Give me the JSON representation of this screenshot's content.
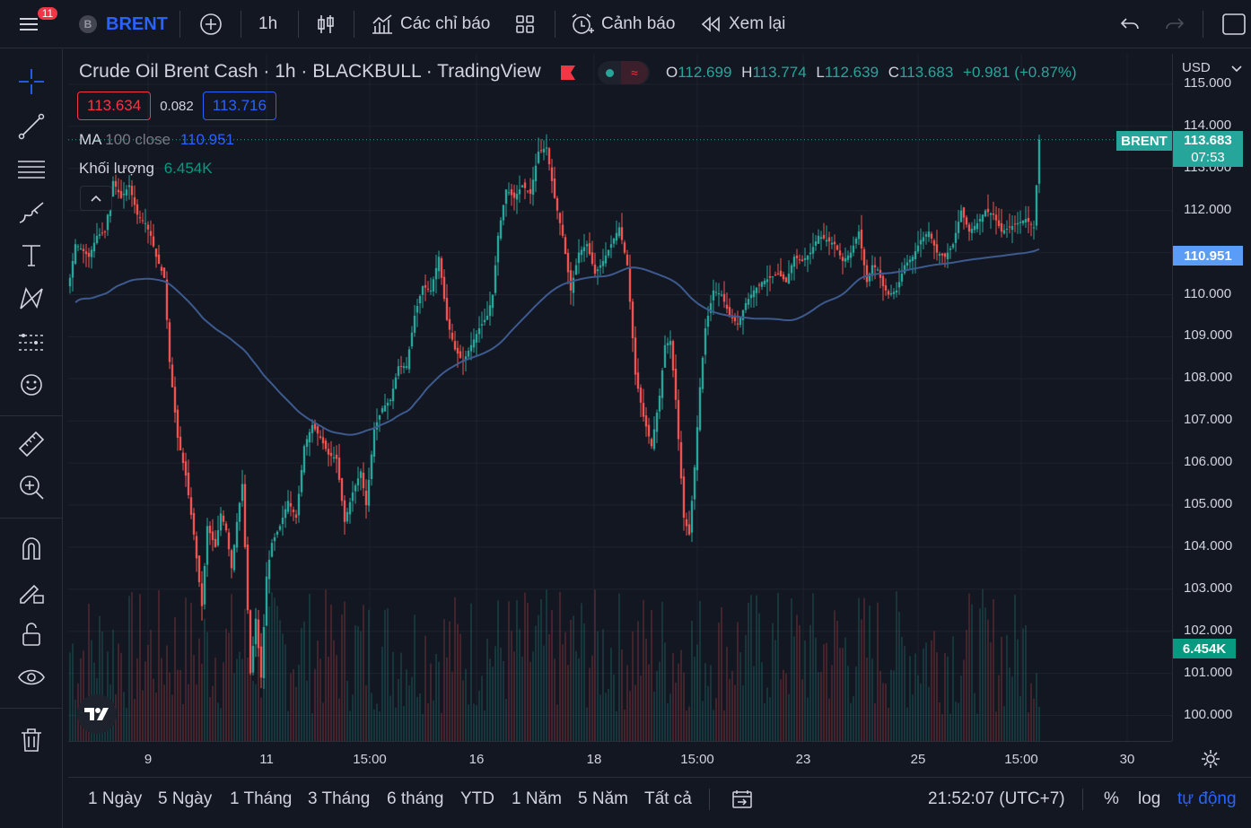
{
  "topbar": {
    "notif_count": "11",
    "symbol_letter": "B",
    "symbol": "BRENT",
    "interval": "1h",
    "indicators_label": "Các chỉ báo",
    "alerts_label": "Cảnh báo",
    "replay_label": "Xem lại"
  },
  "legend": {
    "title": "Crude Oil Brent Cash · 1h · BLACKBULL · TradingView",
    "o_key": "O",
    "o_val": "112.699",
    "h_key": "H",
    "h_val": "113.774",
    "l_key": "L",
    "l_val": "112.639",
    "c_key": "C",
    "c_val": "113.683",
    "change": "+0.981 (+0.87%)",
    "bid": "113.634",
    "spread": "0.082",
    "ask": "113.716",
    "ma_key": "MA",
    "ma_params": "100 close",
    "ma_value": "110.951",
    "vol_label": "Khối lượng",
    "vol_value": "6.454K"
  },
  "price_axis": {
    "currency": "USD",
    "ticks": [
      "115.000",
      "114.000",
      "113.000",
      "112.000",
      "111.000",
      "110.000",
      "109.000",
      "108.000",
      "107.000",
      "106.000",
      "105.000",
      "104.000",
      "103.000",
      "102.000",
      "101.000",
      "100.000"
    ],
    "last_symbol": "BRENT",
    "last_price": "113.683",
    "countdown": "07:53",
    "ma_tag": "110.951",
    "vol_tag": "6.454K"
  },
  "time_axis": {
    "labels": [
      "9",
      "11",
      "15:00",
      "16",
      "18",
      "15:00",
      "23",
      "25",
      "15:00",
      "30"
    ]
  },
  "bottombar": {
    "ranges": [
      "1 Ngày",
      "5 Ngày",
      "1 Tháng",
      "3 Tháng",
      "6 tháng",
      "YTD",
      "1 Năm",
      "5 Năm",
      "Tất cả"
    ],
    "clock": "21:52:07 (UTC+7)",
    "percent": "%",
    "log": "log",
    "auto": "tự động"
  },
  "colors": {
    "up": "#26a69a",
    "down": "#ef5350",
    "ma": "#3d5a8f",
    "accent": "#2962ff"
  },
  "chart_data": {
    "type": "candlestick",
    "symbol": "BRENT",
    "interval": "1h",
    "price_range": [
      99.3,
      115.5
    ],
    "ma_period": 100,
    "anchors": [
      [
        0,
        110.4
      ],
      [
        2,
        111.2
      ],
      [
        4,
        111.1
      ],
      [
        7,
        110.9
      ],
      [
        10,
        111.4
      ],
      [
        13,
        111.5
      ],
      [
        16,
        112.7
      ],
      [
        19,
        112.3
      ],
      [
        22,
        112.6
      ],
      [
        25,
        111.9
      ],
      [
        28,
        111.7
      ],
      [
        30,
        111.4
      ],
      [
        32,
        110.9
      ],
      [
        35,
        110.4
      ],
      [
        37,
        108.4
      ],
      [
        40,
        106.6
      ],
      [
        43,
        105.7
      ],
      [
        46,
        104.3
      ],
      [
        49,
        102.6
      ],
      [
        51,
        104.5
      ],
      [
        54,
        104.0
      ],
      [
        56,
        104.8
      ],
      [
        58,
        104.4
      ],
      [
        60,
        103.5
      ],
      [
        62,
        104.6
      ],
      [
        64,
        105.5
      ],
      [
        67,
        101.0
      ],
      [
        69,
        102.3
      ],
      [
        71,
        100.9
      ],
      [
        73,
        103.3
      ],
      [
        75,
        104.1
      ],
      [
        78,
        104.5
      ],
      [
        81,
        105.1
      ],
      [
        84,
        104.7
      ],
      [
        87,
        106.4
      ],
      [
        90,
        106.9
      ],
      [
        93,
        106.6
      ],
      [
        96,
        106.2
      ],
      [
        99,
        106.1
      ],
      [
        102,
        104.6
      ],
      [
        105,
        105.3
      ],
      [
        108,
        105.8
      ],
      [
        110,
        105.0
      ],
      [
        113,
        106.8
      ],
      [
        116,
        107.3
      ],
      [
        119,
        107.5
      ],
      [
        122,
        108.3
      ],
      [
        125,
        108.3
      ],
      [
        128,
        109.5
      ],
      [
        131,
        110.2
      ],
      [
        134,
        110.1
      ],
      [
        137,
        110.9
      ],
      [
        140,
        109.4
      ],
      [
        143,
        108.7
      ],
      [
        146,
        108.4
      ],
      [
        149,
        108.8
      ],
      [
        152,
        109.2
      ],
      [
        155,
        109.5
      ],
      [
        157,
        110.0
      ],
      [
        159,
        111.4
      ],
      [
        162,
        112.5
      ],
      [
        165,
        112.3
      ],
      [
        168,
        112.6
      ],
      [
        171,
        112.4
      ],
      [
        174,
        113.4
      ],
      [
        177,
        113.5
      ],
      [
        180,
        112.3
      ],
      [
        183,
        111.4
      ],
      [
        186,
        110.1
      ],
      [
        189,
        111.0
      ],
      [
        192,
        111.2
      ],
      [
        195,
        110.5
      ],
      [
        198,
        110.8
      ],
      [
        201,
        111.2
      ],
      [
        204,
        111.6
      ],
      [
        207,
        110.7
      ],
      [
        210,
        108.1
      ],
      [
        213,
        107.1
      ],
      [
        216,
        106.4
      ],
      [
        219,
        107.6
      ],
      [
        221,
        108.8
      ],
      [
        223,
        108.9
      ],
      [
        225,
        107.5
      ],
      [
        228,
        104.7
      ],
      [
        230,
        104.3
      ],
      [
        232,
        105.9
      ],
      [
        234,
        107.8
      ],
      [
        236,
        109.2
      ],
      [
        239,
        110.1
      ],
      [
        242,
        110.0
      ],
      [
        245,
        109.5
      ],
      [
        248,
        109.3
      ],
      [
        251,
        109.8
      ],
      [
        254,
        110.1
      ],
      [
        257,
        110.3
      ],
      [
        260,
        110.4
      ],
      [
        263,
        110.5
      ],
      [
        266,
        110.3
      ],
      [
        269,
        110.9
      ],
      [
        272,
        110.8
      ],
      [
        275,
        111.0
      ],
      [
        278,
        111.4
      ],
      [
        281,
        111.3
      ],
      [
        284,
        111.2
      ],
      [
        287,
        110.8
      ],
      [
        290,
        111.0
      ],
      [
        293,
        111.5
      ],
      [
        296,
        110.3
      ],
      [
        298,
        110.7
      ],
      [
        300,
        110.6
      ],
      [
        302,
        110.2
      ],
      [
        304,
        110.0
      ],
      [
        307,
        110.1
      ],
      [
        310,
        110.7
      ],
      [
        313,
        110.9
      ],
      [
        316,
        111.3
      ],
      [
        319,
        111.5
      ],
      [
        322,
        111.0
      ],
      [
        325,
        110.9
      ],
      [
        328,
        111.2
      ],
      [
        331,
        112.0
      ],
      [
        334,
        111.5
      ],
      [
        337,
        111.7
      ],
      [
        340,
        112.0
      ],
      [
        343,
        111.9
      ],
      [
        346,
        111.5
      ],
      [
        349,
        111.6
      ],
      [
        352,
        111.7
      ],
      [
        355,
        111.8
      ],
      [
        358,
        111.6
      ],
      [
        359,
        112.6
      ],
      [
        360,
        113.683
      ]
    ]
  }
}
